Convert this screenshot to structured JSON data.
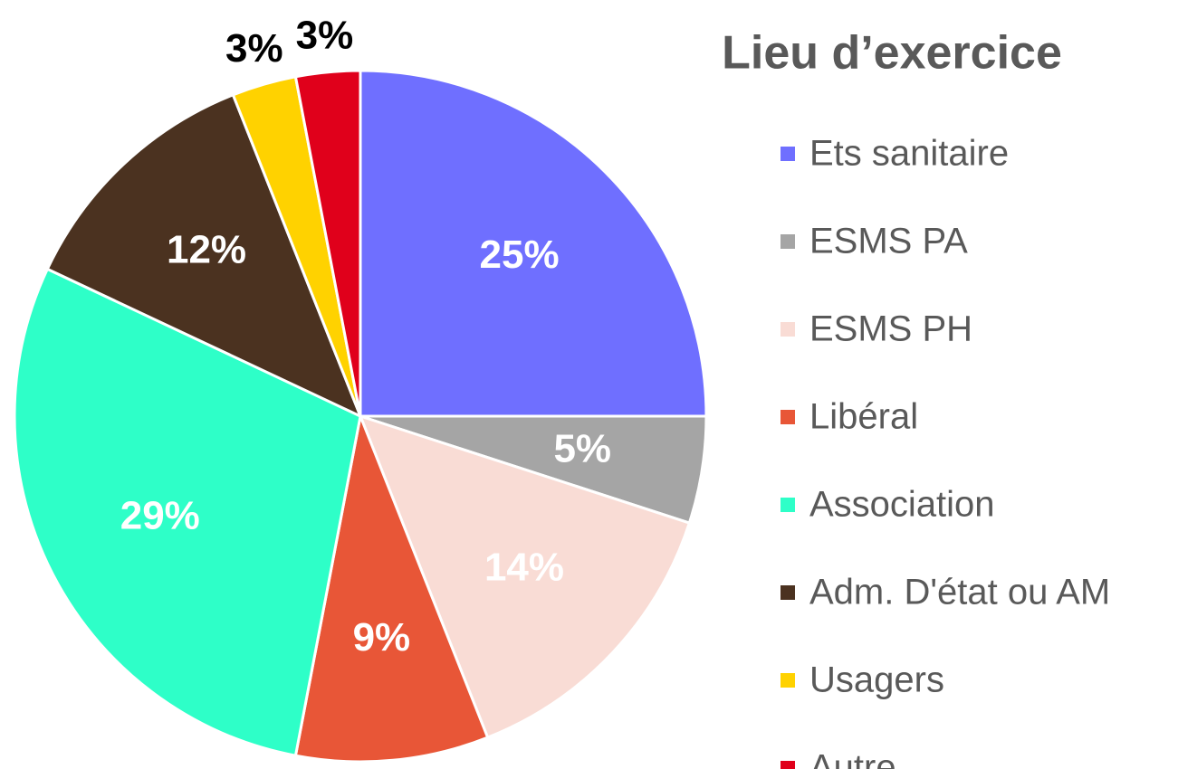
{
  "chart_data": {
    "type": "pie",
    "title": "Lieu d’exercice",
    "categories": [
      "Ets sanitaire",
      "ESMS PA",
      "ESMS PH",
      "Libéral",
      "Association",
      "Adm. D'état ou AM",
      "Usagers",
      "Autre"
    ],
    "values": [
      25,
      5,
      14,
      9,
      29,
      12,
      3,
      3
    ],
    "value_labels": [
      "25%",
      "5%",
      "14%",
      "9%",
      "29%",
      "12%",
      "3%",
      "3%"
    ],
    "colors": [
      "#6f6fff",
      "#a5a5a5",
      "#f9dcd5",
      "#e85637",
      "#2effc8",
      "#4b3220",
      "#ffd200",
      "#e0001b"
    ],
    "label_colors": [
      "#ffffff",
      "#ffffff",
      "#ffffff",
      "#ffffff",
      "#ffffff",
      "#ffffff",
      "#000000",
      "#000000"
    ],
    "legend": "right"
  }
}
